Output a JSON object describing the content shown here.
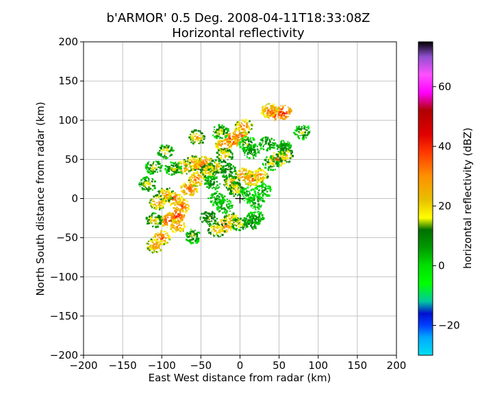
{
  "chart_data": {
    "type": "heatmap",
    "title_line1": "b'ARMOR' 0.5 Deg. 2008-04-11T18:33:08Z",
    "title_line2": "Horizontal reflectivity",
    "xlabel": "East West distance from radar (km)",
    "ylabel": "North South distance from radar (km)",
    "xlim": [
      -200,
      200
    ],
    "ylim": [
      -200,
      200
    ],
    "xticks": [
      -200,
      -150,
      -100,
      -50,
      0,
      50,
      100,
      150,
      200
    ],
    "yticks": [
      -200,
      -150,
      -100,
      -50,
      0,
      50,
      100,
      150,
      200
    ],
    "xtick_labels": [
      "−200",
      "−150",
      "−100",
      "−50",
      "0",
      "50",
      "100",
      "150",
      "200"
    ],
    "ytick_labels": [
      "−200",
      "−150",
      "−100",
      "−50",
      "0",
      "50",
      "100",
      "150",
      "200"
    ],
    "grid": true,
    "radar_location": [
      0,
      0
    ],
    "colorbar": {
      "label": "horizontal reflectivity (dBZ)",
      "range": [
        -30,
        75
      ],
      "ticks": [
        -20,
        0,
        20,
        40,
        60
      ],
      "tick_labels": [
        "−20",
        "0",
        "20",
        "40",
        "60"
      ],
      "stops": [
        {
          "v": -30,
          "c": "#00e0f0"
        },
        {
          "v": -24,
          "c": "#00a8ff"
        },
        {
          "v": -20,
          "c": "#0040ff"
        },
        {
          "v": -16,
          "c": "#0010d0"
        },
        {
          "v": -12,
          "c": "#00c8a0"
        },
        {
          "v": -6,
          "c": "#00ff00"
        },
        {
          "v": 0,
          "c": "#00e000"
        },
        {
          "v": 6,
          "c": "#009a00"
        },
        {
          "v": 12,
          "c": "#007000"
        },
        {
          "v": 16,
          "c": "#ffff00"
        },
        {
          "v": 22,
          "c": "#e8c000"
        },
        {
          "v": 30,
          "c": "#ff9000"
        },
        {
          "v": 38,
          "c": "#ff3800"
        },
        {
          "v": 44,
          "c": "#e00000"
        },
        {
          "v": 52,
          "c": "#b00000"
        },
        {
          "v": 58,
          "c": "#ff00ff"
        },
        {
          "v": 64,
          "c": "#ff50ff"
        },
        {
          "v": 70,
          "c": "#9050d0"
        },
        {
          "v": 75,
          "c": "#000000"
        }
      ]
    },
    "echoes": [
      {
        "x": -75,
        "y": -10,
        "dbz": 40
      },
      {
        "x": -92,
        "y": -28,
        "dbz": 42
      },
      {
        "x": -100,
        "y": -50,
        "dbz": 38
      },
      {
        "x": -108,
        "y": -60,
        "dbz": 34
      },
      {
        "x": -80,
        "y": -22,
        "dbz": 44
      },
      {
        "x": -85,
        "y": 0,
        "dbz": 38
      },
      {
        "x": -95,
        "y": 5,
        "dbz": 32
      },
      {
        "x": -105,
        "y": -5,
        "dbz": 34
      },
      {
        "x": -65,
        "y": 12,
        "dbz": 40
      },
      {
        "x": -55,
        "y": 25,
        "dbz": 36
      },
      {
        "x": -72,
        "y": 40,
        "dbz": 34
      },
      {
        "x": -60,
        "y": 45,
        "dbz": 32
      },
      {
        "x": -50,
        "y": 40,
        "dbz": 42
      },
      {
        "x": -45,
        "y": 45,
        "dbz": 38
      },
      {
        "x": -40,
        "y": 35,
        "dbz": 30
      },
      {
        "x": -30,
        "y": 40,
        "dbz": 28
      },
      {
        "x": -20,
        "y": 68,
        "dbz": 38
      },
      {
        "x": -10,
        "y": 75,
        "dbz": 44
      },
      {
        "x": 0,
        "y": 80,
        "dbz": 40
      },
      {
        "x": 5,
        "y": 92,
        "dbz": 36
      },
      {
        "x": -20,
        "y": 55,
        "dbz": 28
      },
      {
        "x": 10,
        "y": 70,
        "dbz": 18
      },
      {
        "x": 5,
        "y": 30,
        "dbz": 38
      },
      {
        "x": 15,
        "y": 25,
        "dbz": 36
      },
      {
        "x": 25,
        "y": 30,
        "dbz": 34
      },
      {
        "x": -10,
        "y": 20,
        "dbz": 30
      },
      {
        "x": -5,
        "y": 12,
        "dbz": 26
      },
      {
        "x": 48,
        "y": 50,
        "dbz": 38
      },
      {
        "x": 58,
        "y": 55,
        "dbz": 30
      },
      {
        "x": 40,
        "y": 45,
        "dbz": 22
      },
      {
        "x": 45,
        "y": 108,
        "dbz": 44
      },
      {
        "x": 55,
        "y": 110,
        "dbz": 46
      },
      {
        "x": 38,
        "y": 112,
        "dbz": 38
      },
      {
        "x": -20,
        "y": -35,
        "dbz": 38
      },
      {
        "x": -10,
        "y": -28,
        "dbz": 32
      },
      {
        "x": 0,
        "y": -32,
        "dbz": 24
      },
      {
        "x": 15,
        "y": -30,
        "dbz": 12
      },
      {
        "x": -30,
        "y": -40,
        "dbz": 30
      },
      {
        "x": -55,
        "y": 78,
        "dbz": 30
      },
      {
        "x": -95,
        "y": 60,
        "dbz": 24
      },
      {
        "x": -110,
        "y": 40,
        "dbz": 22
      },
      {
        "x": -118,
        "y": 18,
        "dbz": 24
      },
      {
        "x": -110,
        "y": -28,
        "dbz": 26
      },
      {
        "x": 80,
        "y": 85,
        "dbz": 20
      },
      {
        "x": -85,
        "y": 38,
        "dbz": 20
      },
      {
        "x": -60,
        "y": -48,
        "dbz": 20
      },
      {
        "x": -30,
        "y": 0,
        "dbz": 8
      },
      {
        "x": -20,
        "y": -10,
        "dbz": 8
      },
      {
        "x": 10,
        "y": 5,
        "dbz": 6
      },
      {
        "x": 20,
        "y": -5,
        "dbz": 8
      },
      {
        "x": 30,
        "y": 10,
        "dbz": 6
      },
      {
        "x": -35,
        "y": 20,
        "dbz": 10
      },
      {
        "x": -15,
        "y": 35,
        "dbz": 12
      },
      {
        "x": 20,
        "y": -25,
        "dbz": 8
      },
      {
        "x": 35,
        "y": 70,
        "dbz": 10
      },
      {
        "x": 55,
        "y": 65,
        "dbz": 10
      },
      {
        "x": 15,
        "y": 60,
        "dbz": 10
      },
      {
        "x": -25,
        "y": 85,
        "dbz": 22
      },
      {
        "x": -40,
        "y": -25,
        "dbz": 14
      },
      {
        "x": -80,
        "y": -35,
        "dbz": 36
      }
    ]
  }
}
